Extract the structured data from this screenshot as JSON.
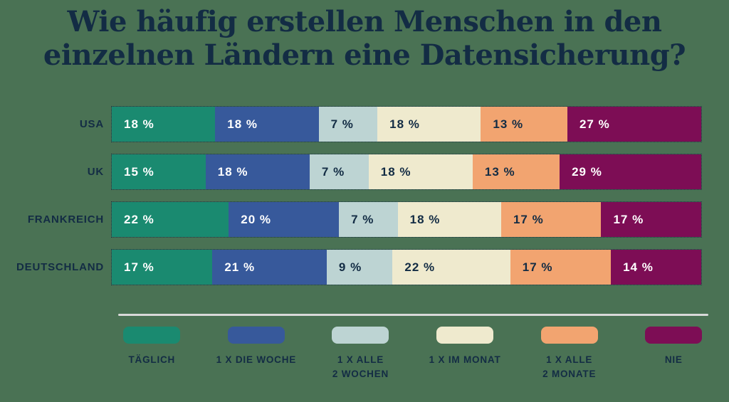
{
  "title": "Wie häufig erstellen Menschen in den einzelnen Ländern eine Datensicherung?",
  "colors": {
    "background": "#4A7254",
    "text_dark": "#132C44",
    "text_light": "#FFFFFF",
    "divider": "#D9D9D9"
  },
  "chart_data": {
    "type": "bar",
    "stacked": true,
    "orientation": "horizontal",
    "title": "Wie häufig erstellen Menschen in den einzelnen Ländern eine Datensicherung?",
    "unit": "%",
    "value_suffix": " %",
    "grid": false,
    "legend_position": "bottom",
    "categories": [
      "USA",
      "UK",
      "FRANKREICH",
      "DEUTSCHLAND"
    ],
    "series": [
      {
        "name": "TÄGLICH",
        "color": "#1A8A70",
        "text_color": "#FFFFFF",
        "values": [
          18,
          15,
          22,
          17
        ]
      },
      {
        "name": "1 X DIE WOCHE",
        "color": "#37599B",
        "text_color": "#FFFFFF",
        "values": [
          18,
          18,
          20,
          21
        ]
      },
      {
        "name": "1 X ALLE 2 WOCHEN",
        "color": "#BDD4D3",
        "text_color": "#132C44",
        "values": [
          7,
          7,
          7,
          9
        ]
      },
      {
        "name": "1 X IM MONAT",
        "color": "#EFEACE",
        "text_color": "#132C44",
        "values": [
          18,
          18,
          18,
          22
        ]
      },
      {
        "name": "1 X ALLE 2 MONATE",
        "color": "#F2A470",
        "text_color": "#132C44",
        "values": [
          13,
          13,
          17,
          17
        ]
      },
      {
        "name": "NIE",
        "color": "#7D0D55",
        "text_color": "#FFFFFF",
        "values": [
          27,
          29,
          17,
          14
        ]
      }
    ],
    "legend": [
      {
        "label": "TÄGLICH"
      },
      {
        "label": "1 X DIE WOCHE"
      },
      {
        "label": "1 X ALLE\n2 WOCHEN"
      },
      {
        "label": "1 X IM MONAT"
      },
      {
        "label": "1 X ALLE\n2 MONATE"
      },
      {
        "label": "NIE"
      }
    ]
  }
}
